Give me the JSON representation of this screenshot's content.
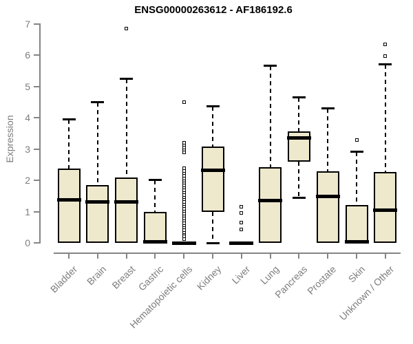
{
  "chart_data": {
    "type": "boxplot",
    "title": "ENSG00000263612 - AF186192.6",
    "ylabel": "Expression",
    "xlabel": "",
    "ylim": [
      0,
      7
    ],
    "yticks": [
      0,
      1,
      2,
      3,
      4,
      5,
      6,
      7
    ],
    "grid": false,
    "legend": "none",
    "categories": [
      "Bladder",
      "Brain",
      "Breast",
      "Gastric",
      "Hematopoietic cells",
      "Kidney",
      "Liver",
      "Lung",
      "Pancreas",
      "Prostate",
      "Skin",
      "Unknown / Other"
    ],
    "boxes": [
      {
        "category": "Bladder",
        "whisker_low": 0,
        "q1": 0,
        "median": 1.38,
        "q3": 2.38,
        "whisker_high": 3.95,
        "outliers": []
      },
      {
        "category": "Brain",
        "whisker_low": 0,
        "q1": 0,
        "median": 1.32,
        "q3": 1.85,
        "whisker_high": 4.5,
        "outliers": []
      },
      {
        "category": "Breast",
        "whisker_low": 0,
        "q1": 0,
        "median": 1.32,
        "q3": 2.1,
        "whisker_high": 5.25,
        "outliers": [
          6.85
        ]
      },
      {
        "category": "Gastric",
        "whisker_low": 0,
        "q1": 0,
        "median": 0.03,
        "q3": 1.0,
        "whisker_high": 2.0,
        "outliers": []
      },
      {
        "category": "Hematopoietic cells",
        "whisker_low": 0,
        "q1": 0,
        "median": 0.0,
        "q3": 0.0,
        "whisker_high": 0.0,
        "outliers": [
          4.5,
          3.2,
          3.12,
          3.04,
          2.96,
          2.89,
          2.38,
          2.3,
          2.22,
          2.14,
          2.05,
          1.98,
          1.9,
          1.83,
          1.75,
          1.68,
          1.6,
          1.53,
          1.45,
          1.38,
          1.3,
          1.23,
          1.15,
          1.08,
          1.0,
          0.93,
          0.85,
          0.78,
          0.7,
          0.63,
          0.55,
          0.48,
          0.4,
          0.33,
          0.25,
          0.2,
          0.13
        ]
      },
      {
        "category": "Kidney",
        "whisker_low": 0,
        "q1": 1.0,
        "median": 2.33,
        "q3": 3.08,
        "whisker_high": 4.35,
        "outliers": []
      },
      {
        "category": "Liver",
        "whisker_low": 0,
        "q1": 0,
        "median": 0.0,
        "q3": 0.0,
        "whisker_high": 0.0,
        "outliers": [
          1.15,
          0.95,
          0.65,
          0.42
        ]
      },
      {
        "category": "Lung",
        "whisker_low": 0,
        "q1": 0,
        "median": 1.35,
        "q3": 2.42,
        "whisker_high": 5.65,
        "outliers": []
      },
      {
        "category": "Pancreas",
        "whisker_low": 1.45,
        "q1": 2.6,
        "median": 3.35,
        "q3": 3.57,
        "whisker_high": 4.65,
        "outliers": []
      },
      {
        "category": "Prostate",
        "whisker_low": 0,
        "q1": 0,
        "median": 1.49,
        "q3": 2.29,
        "whisker_high": 4.3,
        "outliers": []
      },
      {
        "category": "Skin",
        "whisker_low": 0,
        "q1": 0,
        "median": 0.04,
        "q3": 1.2,
        "whisker_high": 2.9,
        "outliers": [
          3.3
        ]
      },
      {
        "category": "Unknown / Other",
        "whisker_low": 0,
        "q1": 0,
        "median": 1.04,
        "q3": 2.27,
        "whisker_high": 5.7,
        "outliers": [
          6.35,
          5.97
        ]
      }
    ],
    "colors": {
      "box_fill": "#EEE8CD",
      "box_border": "#000000",
      "median": "#000000",
      "whisker": "#000000",
      "axis": "#848484",
      "tick_label": "#7D7D7D",
      "title": "#000000",
      "background": "#FFFFFF"
    }
  }
}
